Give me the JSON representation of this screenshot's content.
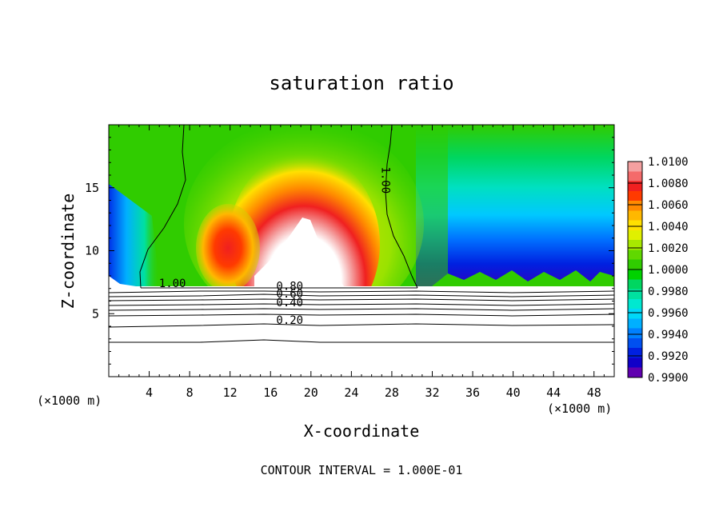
{
  "chart_data": {
    "type": "heatmap",
    "title": "saturation ratio",
    "xlabel": "X-coordinate",
    "ylabel": "Z-coordinate",
    "x_unit_left": "(×1000 m)",
    "x_unit_right": "(×1000 m)",
    "footer": "CONTOUR INTERVAL = 1.000E-01",
    "xlim": [
      0,
      50
    ],
    "ylim": [
      0,
      20
    ],
    "x_ticks": [
      4,
      8,
      12,
      16,
      20,
      24,
      28,
      32,
      36,
      40,
      44,
      48
    ],
    "y_ticks": [
      5,
      10,
      15
    ],
    "colorbar": {
      "labels": [
        "1.0100",
        "1.0080",
        "1.0060",
        "1.0040",
        "1.0020",
        "1.0000",
        "0.9980",
        "0.9960",
        "0.9940",
        "0.9920",
        "0.9900"
      ],
      "colors": [
        "#f4a0a0",
        "#f46a6a",
        "#f02020",
        "#ff3a00",
        "#ff8a00",
        "#ffb800",
        "#ffe000",
        "#e0f000",
        "#a8e800",
        "#60d800",
        "#30cc00",
        "#00d200",
        "#00d660",
        "#00e0a0",
        "#00e8d0",
        "#00d8f8",
        "#00b0ff",
        "#0080ff",
        "#0050f0",
        "#0020e0",
        "#1000c8",
        "#6000b0"
      ]
    },
    "contour_labels": [
      {
        "text": "1.00",
        "x": 6.3,
        "y": 7.1
      },
      {
        "text": "1.00",
        "x": 27.0,
        "y": 15.6,
        "rotate": 90
      },
      {
        "text": "0.80",
        "x": 17.9,
        "y": 6.9
      },
      {
        "text": "0.60",
        "x": 17.9,
        "y": 6.3
      },
      {
        "text": "0.40",
        "x": 17.9,
        "y": 5.6
      },
      {
        "text": "0.20",
        "x": 17.9,
        "y": 4.2
      }
    ]
  }
}
